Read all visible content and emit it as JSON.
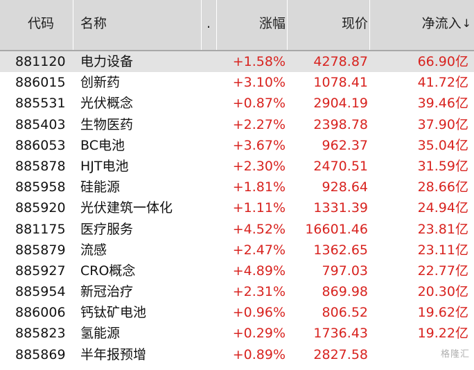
{
  "header": {
    "code": "代码",
    "name": "名称",
    "dot": ".",
    "change": "涨幅",
    "price": "现价",
    "netflow": "净流入",
    "sort_arrow": "↓"
  },
  "rows": [
    {
      "code": "881120",
      "name": "电力设备",
      "change": "+1.58%",
      "price": "4278.87",
      "netflow": "66.90亿"
    },
    {
      "code": "886015",
      "name": "创新药",
      "change": "+3.10%",
      "price": "1078.41",
      "netflow": "41.72亿"
    },
    {
      "code": "885531",
      "name": "光伏概念",
      "change": "+0.87%",
      "price": "2904.19",
      "netflow": "39.46亿"
    },
    {
      "code": "885403",
      "name": "生物医药",
      "change": "+2.27%",
      "price": "2398.78",
      "netflow": "37.90亿"
    },
    {
      "code": "886053",
      "name": "BC电池",
      "change": "+3.67%",
      "price": "962.37",
      "netflow": "35.04亿"
    },
    {
      "code": "885878",
      "name": "HJT电池",
      "change": "+2.30%",
      "price": "2470.51",
      "netflow": "31.59亿"
    },
    {
      "code": "885958",
      "name": "硅能源",
      "change": "+1.81%",
      "price": "928.64",
      "netflow": "28.66亿"
    },
    {
      "code": "885920",
      "name": "光伏建筑一体化",
      "change": "+1.11%",
      "price": "1331.39",
      "netflow": "24.94亿"
    },
    {
      "code": "881175",
      "name": "医疗服务",
      "change": "+4.52%",
      "price": "16601.46",
      "netflow": "23.81亿"
    },
    {
      "code": "885879",
      "name": "流感",
      "change": "+2.47%",
      "price": "1362.65",
      "netflow": "23.11亿"
    },
    {
      "code": "885927",
      "name": "CRO概念",
      "change": "+4.89%",
      "price": "797.03",
      "netflow": "22.77亿"
    },
    {
      "code": "885954",
      "name": "新冠治疗",
      "change": "+2.31%",
      "price": "869.98",
      "netflow": "20.30亿"
    },
    {
      "code": "886006",
      "name": "钙钛矿电池",
      "change": "+0.96%",
      "price": "806.52",
      "netflow": "19.62亿"
    },
    {
      "code": "885823",
      "name": "氢能源",
      "change": "+0.29%",
      "price": "1736.43",
      "netflow": "19.22亿"
    },
    {
      "code": "885869",
      "name": "半年报预增",
      "change": "+0.89%",
      "price": "2827.58",
      "netflow": ""
    }
  ],
  "selected_row": 0,
  "watermark": "格隆汇",
  "colors": {
    "up": "#d8231f",
    "header_bg": "#d9d9d9",
    "selected_bg": "#e3e3e3"
  }
}
